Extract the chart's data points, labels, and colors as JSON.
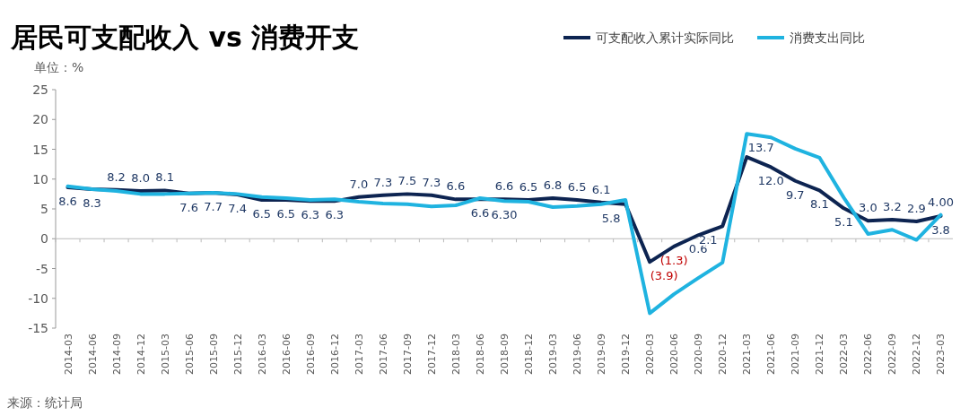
{
  "chart_data": {
    "type": "line",
    "title": "居民可支配收入 vs 消费开支",
    "ylabel": "单位：%",
    "categories": [
      "2014-03",
      "2014-06",
      "2014-09",
      "2014-12",
      "2015-03",
      "2015-06",
      "2015-09",
      "2015-12",
      "2016-03",
      "2016-06",
      "2016-09",
      "2016-12",
      "2017-03",
      "2017-06",
      "2017-09",
      "2017-12",
      "2018-03",
      "2018-06",
      "2018-09",
      "2018-12",
      "2019-03",
      "2019-06",
      "2019-09",
      "2019-12",
      "2020-03",
      "2020-06",
      "2020-09",
      "2020-12",
      "2021-03",
      "2021-06",
      "2021-09",
      "2021-12",
      "2022-03",
      "2022-06",
      "2022-09",
      "2022-12",
      "2023-03"
    ],
    "series": [
      {
        "name": "可支配收入累计实际同比",
        "color": "#0d2451",
        "values": [
          8.6,
          8.3,
          8.2,
          8.0,
          8.1,
          7.6,
          7.7,
          7.4,
          6.5,
          6.5,
          6.3,
          6.3,
          7.0,
          7.3,
          7.5,
          7.3,
          6.6,
          6.6,
          6.6,
          6.5,
          6.8,
          6.5,
          6.1,
          5.8,
          -3.9,
          -1.3,
          0.6,
          2.1,
          13.7,
          12.0,
          9.7,
          8.1,
          5.1,
          3.0,
          3.2,
          2.9,
          3.8
        ],
        "value_labels": [
          "8.6",
          "8.3",
          "8.2",
          "8.0",
          "8.1",
          "7.6",
          "7.7",
          "7.4",
          "6.5",
          "6.5",
          "6.3",
          "6.3",
          "7.0",
          "7.3",
          "7.5",
          "7.3",
          "6.6",
          "6.6",
          "6.6",
          "6.5",
          "6.8",
          "6.5",
          "6.1",
          "5.8",
          "(3.9)",
          "(1.3)",
          "0.6",
          "2.1",
          "13.7",
          "12.0",
          "9.7",
          "8.1",
          "5.1",
          "3.0",
          "3.2",
          "2.9",
          "3.8"
        ]
      },
      {
        "name": "消费支出同比",
        "color": "#1fb3e0",
        "values": [
          8.8,
          8.3,
          8.0,
          7.5,
          7.5,
          7.6,
          7.7,
          7.5,
          7.0,
          6.8,
          6.5,
          6.6,
          6.2,
          5.9,
          5.8,
          5.4,
          5.6,
          6.8,
          6.3,
          6.2,
          5.3,
          5.5,
          5.8,
          6.5,
          -12.5,
          -9.3,
          -6.6,
          -4.0,
          17.6,
          17.0,
          15.1,
          13.6,
          6.9,
          0.8,
          1.5,
          -0.2,
          4.0
        ],
        "value_labels": [
          null,
          null,
          null,
          null,
          null,
          null,
          null,
          null,
          null,
          null,
          null,
          null,
          null,
          null,
          null,
          null,
          null,
          null,
          "6.30",
          null,
          null,
          null,
          null,
          null,
          null,
          null,
          null,
          null,
          null,
          null,
          null,
          null,
          null,
          null,
          null,
          null,
          "4.00"
        ]
      }
    ],
    "ylim": [
      -15,
      25
    ],
    "yticks": [
      -15,
      -10,
      -5,
      0,
      5,
      10,
      15,
      20,
      25
    ],
    "legend": "top right",
    "annotations": [
      "来源：统计局"
    ]
  }
}
